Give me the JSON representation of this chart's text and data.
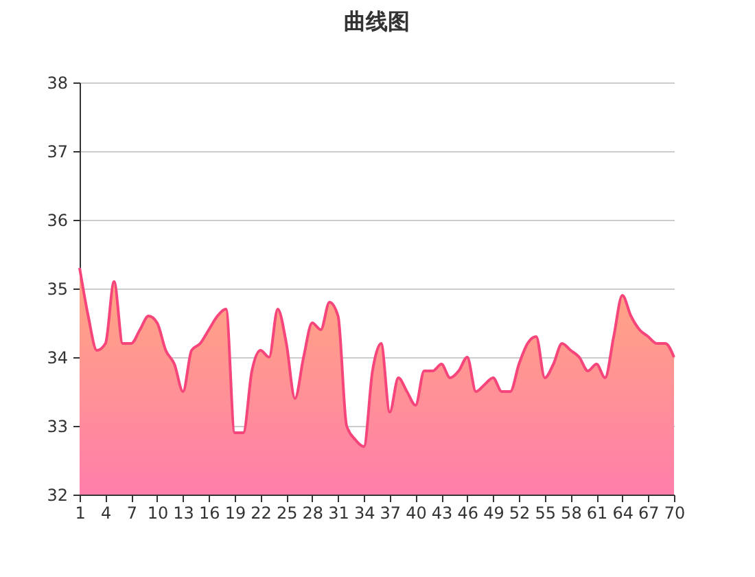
{
  "chart_data": {
    "type": "area",
    "title": "曲线图",
    "categories": [
      "1",
      null,
      null,
      "4",
      null,
      null,
      "7",
      null,
      null,
      "10",
      null,
      null,
      "13",
      null,
      null,
      "16",
      null,
      null,
      "19",
      null,
      null,
      "22",
      null,
      null,
      "25",
      null,
      null,
      "28",
      null,
      null,
      "31",
      null,
      null,
      "34",
      null,
      null,
      "37",
      null,
      null,
      "40",
      null,
      null,
      "43",
      null,
      null,
      "46",
      null,
      null,
      "49",
      null,
      null,
      "52",
      null,
      null,
      "55",
      null,
      null,
      "58",
      null,
      null,
      "61",
      null,
      null,
      "64",
      null,
      null,
      "67",
      null,
      null,
      "70"
    ],
    "series": [
      {
        "color": "#f5457b",
        "values": [
          35.3,
          34.6,
          34.1,
          34.2,
          35.1,
          34.2,
          34.2,
          34.4,
          34.6,
          34.5,
          34.1,
          33.9,
          33.5,
          34.1,
          34.2,
          34.4,
          34.6,
          34.7,
          32.9,
          32.9,
          33.8,
          34.1,
          34.0,
          34.7,
          34.2,
          33.4,
          34.0,
          34.5,
          34.4,
          34.8,
          34.6,
          33.0,
          32.8,
          32.7,
          33.8,
          34.2,
          33.2,
          33.7,
          33.5,
          33.3,
          33.8,
          33.8,
          33.9,
          33.7,
          33.8,
          34.0,
          33.5,
          33.6,
          33.7,
          33.5,
          33.5,
          33.9,
          34.2,
          34.3,
          33.7,
          33.9,
          34.2,
          34.1,
          34.0,
          33.8,
          33.9,
          33.7,
          34.3,
          34.9,
          34.6,
          34.4,
          34.3,
          34.2,
          34.2,
          34.0
        ]
      }
    ],
    "ylim": [
      32,
      38
    ],
    "yticks": [
      32,
      33,
      34,
      35,
      36,
      37,
      38
    ],
    "grid": "y",
    "marker": "none",
    "line_style": "solid"
  }
}
